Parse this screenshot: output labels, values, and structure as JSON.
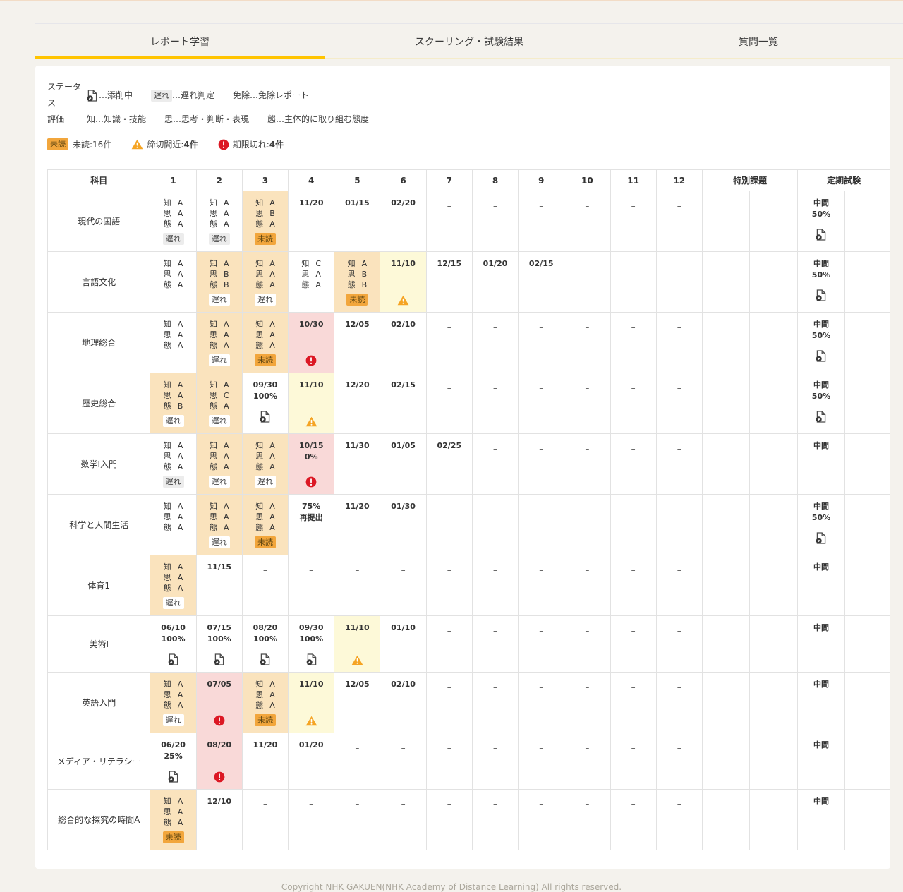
{
  "tabs": {
    "report": "レポート学習",
    "schooling": "スクーリング・試験結果",
    "questions": "質問一覧"
  },
  "legend": {
    "status_label": "ステータス",
    "pen_desc": "…添削中",
    "late_badge": "遅れ",
    "late_desc": "…遅れ判定",
    "exempt_label": "免除",
    "exempt_desc": "…免除レポート",
    "eval_label": "評価",
    "eval_knowledge": "知…知識・技能",
    "eval_thinking": "思…思考・判断・表現",
    "eval_attitude": "態…主体的に取り組む態度"
  },
  "summary": {
    "unread_badge": "未読",
    "unread_label": "未読:16件",
    "deadline_label": "締切間近:",
    "deadline_count": "4件",
    "overdue_label": "期限切れ:",
    "overdue_count": "4件"
  },
  "colors": {
    "accent": "#ffc400",
    "orange_cell": "#fae3bd",
    "yellow_cell": "#fdf9d8",
    "pink_cell": "#f9d9d8",
    "unread_badge": "#f2a63c",
    "warning": "#f5a423",
    "overdue": "#dc1824"
  },
  "table": {
    "subject_header": "科目",
    "lesson_columns": [
      "1",
      "2",
      "3",
      "4",
      "5",
      "6",
      "7",
      "8",
      "9",
      "10",
      "11",
      "12"
    ],
    "special_header": "特別課題",
    "exam_header": "定期試験",
    "grade_labels": [
      "知",
      "思",
      "態"
    ],
    "rows": [
      {
        "subject": "現代の国語",
        "cells": [
          {
            "grades": [
              "A",
              "A",
              "A"
            ],
            "badge": "遅れ"
          },
          {
            "grades": [
              "A",
              "A",
              "A"
            ],
            "badge": "遅れ"
          },
          {
            "bg": "orange",
            "grades": [
              "A",
              "B",
              "A"
            ],
            "badge": "未読"
          },
          {
            "lines": [
              "11/20"
            ]
          },
          {
            "lines": [
              "01/15"
            ]
          },
          {
            "lines": [
              "02/20"
            ]
          },
          {
            "dash": true
          },
          {
            "dash": true
          },
          {
            "dash": true
          },
          {
            "dash": true
          },
          {
            "dash": true
          },
          {
            "dash": true
          }
        ],
        "exam": {
          "lines": [
            "中間",
            "50%"
          ],
          "icon": "pen"
        }
      },
      {
        "subject": "言語文化",
        "cells": [
          {
            "grades": [
              "A",
              "A",
              "A"
            ]
          },
          {
            "bg": "orange",
            "grades": [
              "A",
              "B",
              "B"
            ],
            "badge": "遅れ"
          },
          {
            "bg": "orange",
            "grades": [
              "A",
              "A",
              "A"
            ],
            "badge": "遅れ"
          },
          {
            "grades": [
              "C",
              "A",
              "A"
            ]
          },
          {
            "bg": "orange",
            "grades": [
              "A",
              "B",
              "B"
            ],
            "badge": "未読"
          },
          {
            "bg": "yellow",
            "lines": [
              "11/10"
            ],
            "icon": "warning"
          },
          {
            "lines": [
              "12/15"
            ]
          },
          {
            "lines": [
              "01/20"
            ]
          },
          {
            "lines": [
              "02/15"
            ]
          },
          {
            "dash": true
          },
          {
            "dash": true
          },
          {
            "dash": true
          }
        ],
        "exam": {
          "lines": [
            "中間",
            "50%"
          ],
          "icon": "pen"
        }
      },
      {
        "subject": "地理総合",
        "cells": [
          {
            "grades": [
              "A",
              "A",
              "A"
            ]
          },
          {
            "bg": "orange",
            "grades": [
              "A",
              "A",
              "A"
            ],
            "badge": "遅れ"
          },
          {
            "bg": "orange",
            "grades": [
              "A",
              "A",
              "A"
            ],
            "badge": "未読"
          },
          {
            "bg": "pink",
            "lines": [
              "10/30"
            ],
            "icon": "overdue"
          },
          {
            "lines": [
              "12/05"
            ]
          },
          {
            "lines": [
              "02/10"
            ]
          },
          {
            "dash": true
          },
          {
            "dash": true
          },
          {
            "dash": true
          },
          {
            "dash": true
          },
          {
            "dash": true
          },
          {
            "dash": true
          }
        ],
        "exam": {
          "lines": [
            "中間",
            "50%"
          ],
          "icon": "pen"
        }
      },
      {
        "subject": "歴史総合",
        "cells": [
          {
            "bg": "orange",
            "grades": [
              "A",
              "A",
              "B"
            ],
            "badge": "遅れ"
          },
          {
            "bg": "orange",
            "grades": [
              "A",
              "C",
              "A"
            ],
            "badge": "遅れ"
          },
          {
            "lines": [
              "09/30",
              "100%"
            ],
            "icon": "pen"
          },
          {
            "bg": "yellow",
            "lines": [
              "11/10"
            ],
            "icon": "warning"
          },
          {
            "lines": [
              "12/20"
            ]
          },
          {
            "lines": [
              "02/15"
            ]
          },
          {
            "dash": true
          },
          {
            "dash": true
          },
          {
            "dash": true
          },
          {
            "dash": true
          },
          {
            "dash": true
          },
          {
            "dash": true
          }
        ],
        "exam": {
          "lines": [
            "中間",
            "50%"
          ],
          "icon": "pen"
        }
      },
      {
        "subject": "数学Ⅰ入門",
        "cells": [
          {
            "grades": [
              "A",
              "A",
              "A"
            ],
            "badge": "遅れ"
          },
          {
            "bg": "orange",
            "grades": [
              "A",
              "A",
              "A"
            ],
            "badge": "遅れ"
          },
          {
            "bg": "orange",
            "grades": [
              "A",
              "A",
              "A"
            ],
            "badge": "遅れ"
          },
          {
            "bg": "pink",
            "lines": [
              "10/15",
              "0%"
            ],
            "icon": "overdue"
          },
          {
            "lines": [
              "11/30"
            ]
          },
          {
            "lines": [
              "01/05"
            ]
          },
          {
            "lines": [
              "02/25"
            ]
          },
          {
            "dash": true
          },
          {
            "dash": true
          },
          {
            "dash": true
          },
          {
            "dash": true
          },
          {
            "dash": true
          }
        ],
        "exam": {
          "lines": [
            "中間"
          ]
        }
      },
      {
        "subject": "科学と人間生活",
        "cells": [
          {
            "grades": [
              "A",
              "A",
              "A"
            ]
          },
          {
            "bg": "orange",
            "grades": [
              "A",
              "A",
              "A"
            ],
            "badge": "遅れ"
          },
          {
            "bg": "orange",
            "grades": [
              "A",
              "A",
              "A"
            ],
            "badge": "未読"
          },
          {
            "lines": [
              "75%",
              "再提出"
            ]
          },
          {
            "lines": [
              "11/20"
            ]
          },
          {
            "lines": [
              "01/30"
            ]
          },
          {
            "dash": true
          },
          {
            "dash": true
          },
          {
            "dash": true
          },
          {
            "dash": true
          },
          {
            "dash": true
          },
          {
            "dash": true
          }
        ],
        "exam": {
          "lines": [
            "中間",
            "50%"
          ],
          "icon": "pen"
        }
      },
      {
        "subject": "体育1",
        "cells": [
          {
            "bg": "orange",
            "grades": [
              "A",
              "A",
              "A"
            ],
            "badge": "遅れ"
          },
          {
            "lines": [
              "11/15"
            ]
          },
          {
            "dash": true
          },
          {
            "dash": true
          },
          {
            "dash": true
          },
          {
            "dash": true
          },
          {
            "dash": true
          },
          {
            "dash": true
          },
          {
            "dash": true
          },
          {
            "dash": true
          },
          {
            "dash": true
          },
          {
            "dash": true
          }
        ],
        "exam": {
          "lines": [
            "中間"
          ]
        }
      },
      {
        "subject": "美術Ⅰ",
        "cells": [
          {
            "lines": [
              "06/10",
              "100%"
            ],
            "icon": "pen"
          },
          {
            "lines": [
              "07/15",
              "100%"
            ],
            "icon": "pen"
          },
          {
            "lines": [
              "08/20",
              "100%"
            ],
            "icon": "pen"
          },
          {
            "lines": [
              "09/30",
              "100%"
            ],
            "icon": "pen"
          },
          {
            "bg": "yellow",
            "lines": [
              "11/10"
            ],
            "icon": "warning"
          },
          {
            "lines": [
              "01/10"
            ]
          },
          {
            "dash": true
          },
          {
            "dash": true
          },
          {
            "dash": true
          },
          {
            "dash": true
          },
          {
            "dash": true
          },
          {
            "dash": true
          }
        ],
        "exam": {
          "lines": [
            "中間"
          ]
        }
      },
      {
        "subject": "英語入門",
        "cells": [
          {
            "bg": "orange",
            "grades": [
              "A",
              "A",
              "A"
            ],
            "badge": "遅れ"
          },
          {
            "bg": "pink",
            "lines": [
              "07/05"
            ],
            "icon": "overdue"
          },
          {
            "bg": "orange",
            "grades": [
              "A",
              "A",
              "A"
            ],
            "badge": "未読"
          },
          {
            "bg": "yellow",
            "lines": [
              "11/10"
            ],
            "icon": "warning"
          },
          {
            "lines": [
              "12/05"
            ]
          },
          {
            "lines": [
              "02/10"
            ]
          },
          {
            "dash": true
          },
          {
            "dash": true
          },
          {
            "dash": true
          },
          {
            "dash": true
          },
          {
            "dash": true
          },
          {
            "dash": true
          }
        ],
        "exam": {
          "lines": [
            "中間"
          ]
        }
      },
      {
        "subject": "メディア・リテラシー",
        "cells": [
          {
            "lines": [
              "06/20",
              "25%"
            ],
            "icon": "pen"
          },
          {
            "bg": "pink",
            "lines": [
              "08/20"
            ],
            "icon": "overdue"
          },
          {
            "lines": [
              "11/20"
            ]
          },
          {
            "lines": [
              "01/20"
            ]
          },
          {
            "dash": true
          },
          {
            "dash": true
          },
          {
            "dash": true
          },
          {
            "dash": true
          },
          {
            "dash": true
          },
          {
            "dash": true
          },
          {
            "dash": true
          },
          {
            "dash": true
          }
        ],
        "exam": {
          "lines": [
            "中間"
          ]
        }
      },
      {
        "subject": "総合的な探究の時間A",
        "cells": [
          {
            "bg": "orange",
            "grades": [
              "A",
              "A",
              "A"
            ],
            "badge": "未読"
          },
          {
            "lines": [
              "12/10"
            ]
          },
          {
            "dash": true
          },
          {
            "dash": true
          },
          {
            "dash": true
          },
          {
            "dash": true
          },
          {
            "dash": true
          },
          {
            "dash": true
          },
          {
            "dash": true
          },
          {
            "dash": true
          },
          {
            "dash": true
          },
          {
            "dash": true
          }
        ],
        "exam": {
          "lines": [
            "中間"
          ]
        }
      }
    ]
  },
  "footer": "Copyright NHK GAKUEN(NHK Academy of Distance Learning) All rights reserved."
}
